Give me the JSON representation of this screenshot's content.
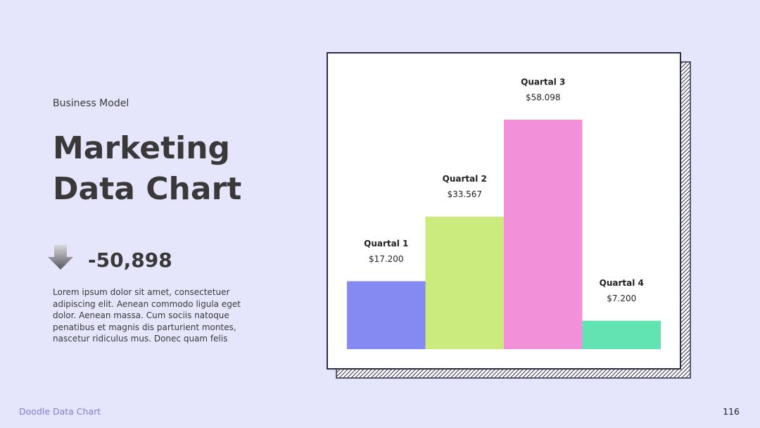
{
  "header": {
    "kicker": "Business Model",
    "title_lines": [
      "Marketing",
      "Data Chart"
    ]
  },
  "stat": {
    "value": "-50,898"
  },
  "body": "Lorem ipsum dolor sit amet, consectetuer adipiscing elit. Aenean commodo ligula eget dolor. Aenean massa. Cum sociis natoque penatibus et magnis dis parturient montes, nascetur ridiculus mus. Donec quam felis",
  "footer": {
    "brand": "Doodle Data Chart",
    "page": "116"
  },
  "chart_data": {
    "type": "bar",
    "categories": [
      "Quartal 1",
      "Quartal 2",
      "Quartal 3",
      "Quartal 4"
    ],
    "values": [
      17200,
      33567,
      58098,
      7200
    ],
    "value_labels": [
      "$17.200",
      "$33.567",
      "$58.098",
      "$7.200"
    ],
    "colors": [
      "#8589f2",
      "#cbeb7e",
      "#f291d9",
      "#63e3b2"
    ]
  }
}
